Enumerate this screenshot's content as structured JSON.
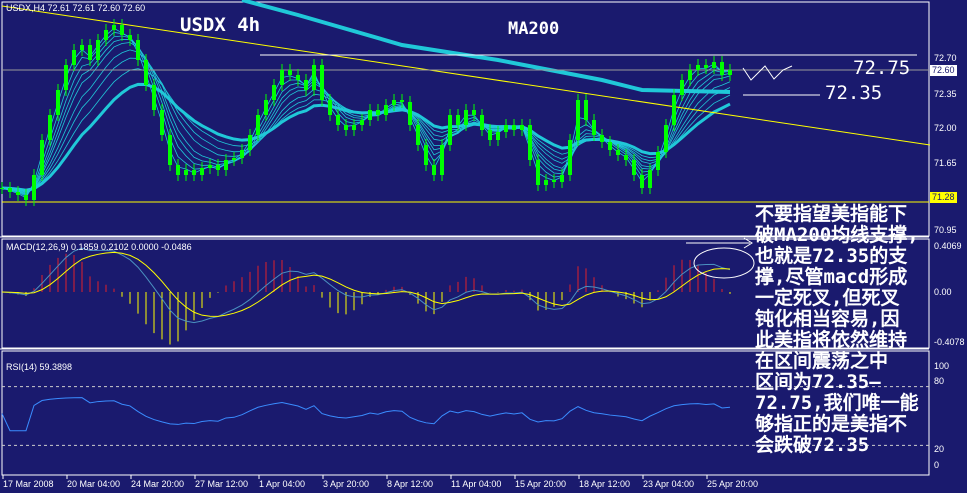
{
  "window": {
    "symbol_header": "USDX,H4  72.61 72.61 72.60 72.60",
    "title": "USDX 4h"
  },
  "annotations": {
    "ma200": "MA200",
    "resistance": "72.75",
    "support": "72.35",
    "note": "不要指望美指能下\n破MA200均线支撑,\n也就是72.35的支\n撑,尽管macd形成\n一定死叉,但死叉\n钝化相当容易,因\n此美指将依然维持\n在区间震荡之中\n区间为72.35—\n72.75,我们唯一能\n够指正的是美指不\n会跌破72.35"
  },
  "colors": {
    "background": "#1a1a6e",
    "candles": "#00ff00",
    "ma": "#20c8d8",
    "trendline": "#ffff00",
    "rsi": "#3a8cff",
    "macd_main": "#4a90c0",
    "macd_signal": "#ffff00",
    "hist_pos": "#e0202a",
    "hist_neg": "#ffff00"
  },
  "chart_data": [
    {
      "type": "candlestick",
      "panel": "price",
      "interval": "4h",
      "y_ticks": [
        "72.70",
        "72.35",
        "72.00",
        "71.65",
        "70.95"
      ],
      "ylim": [
        70.94,
        73.3
      ],
      "current_price": "72.60",
      "support_level": "71.28",
      "close": [
        71.42,
        71.38,
        71.35,
        71.3,
        71.55,
        71.9,
        72.15,
        72.4,
        72.65,
        72.8,
        72.85,
        72.7,
        72.9,
        73.0,
        73.05,
        72.95,
        72.9,
        72.7,
        72.45,
        72.2,
        71.95,
        71.65,
        71.55,
        71.6,
        71.55,
        71.62,
        71.65,
        71.6,
        71.7,
        71.72,
        71.8,
        71.95,
        72.15,
        72.3,
        72.45,
        72.6,
        72.55,
        72.5,
        72.4,
        72.65,
        72.3,
        72.15,
        72.05,
        72.0,
        72.05,
        72.1,
        72.2,
        72.15,
        72.25,
        72.3,
        72.28,
        72.05,
        71.85,
        71.65,
        71.55,
        71.85,
        72.15,
        72.05,
        72.2,
        72.15,
        72.0,
        71.9,
        71.98,
        72.05,
        72.0,
        72.05,
        71.7,
        71.45,
        71.5,
        71.48,
        71.55,
        71.9,
        72.3,
        72.1,
        71.95,
        71.88,
        71.8,
        71.75,
        71.7,
        71.55,
        71.42,
        71.6,
        71.78,
        72.05,
        72.35,
        72.5,
        72.6,
        72.65,
        72.62,
        72.68,
        72.55,
        72.6
      ],
      "ma200": [
        [
          30,
          73.3
        ],
        [
          37,
          73.15
        ],
        [
          50,
          72.85
        ],
        [
          62,
          72.7
        ],
        [
          75,
          72.5
        ],
        [
          80,
          72.4
        ],
        [
          91,
          72.38
        ]
      ],
      "trendline": [
        [
          0,
          73.24
        ],
        [
          116,
          71.85
        ]
      ],
      "levels": [
        72.75,
        72.35,
        71.28,
        72.6
      ]
    },
    {
      "type": "macd",
      "panel": "macd",
      "label": "MACD(12,26,9) 0.1859 0.2102 0.0000 -0.0486",
      "y_ticks": [
        "0.4069",
        "0.00",
        "-0.4078"
      ],
      "ylim": [
        -0.4078,
        0.4069
      ]
    },
    {
      "type": "line",
      "panel": "rsi",
      "label": "RSI(14) 59.3898",
      "y_ticks": [
        "100",
        "80",
        "20",
        "0"
      ],
      "ylim": [
        0,
        100
      ],
      "levels": [
        80,
        20
      ]
    }
  ],
  "time_axis": [
    "17 Mar 2008",
    "20 Mar 04:00",
    "24 Mar 20:00",
    "27 Mar 12:00",
    "1 Apr 04:00",
    "3 Apr 20:00",
    "8 Apr 12:00",
    "11 Apr 04:00",
    "15 Apr 20:00",
    "18 Apr 12:00",
    "23 Apr 04:00",
    "25 Apr 20:00"
  ]
}
